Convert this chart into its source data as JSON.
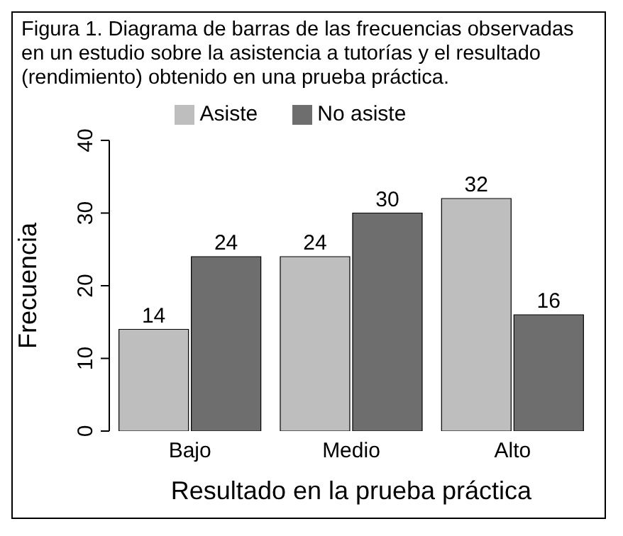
{
  "chart_data": {
    "type": "bar",
    "title": "Figura 1. Diagrama de barras de las frecuencias observadas en un estudio sobre la asistencia a tutorías y el resultado (rendimiento) obtenido en una prueba práctica.",
    "xlabel": "Resultado en la prueba práctica",
    "ylabel": "Frecuencia",
    "categories": [
      "Bajo",
      "Medio",
      "Alto"
    ],
    "series": [
      {
        "name": "Asiste",
        "color": "#bebebe",
        "values": [
          14,
          24,
          32
        ]
      },
      {
        "name": "No asiste",
        "color": "#6e6e6e",
        "values": [
          24,
          30,
          16
        ]
      }
    ],
    "ylim": [
      0,
      40
    ],
    "yticks": [
      0,
      10,
      20,
      30,
      40
    ],
    "legend": "top",
    "data_labels": true
  }
}
